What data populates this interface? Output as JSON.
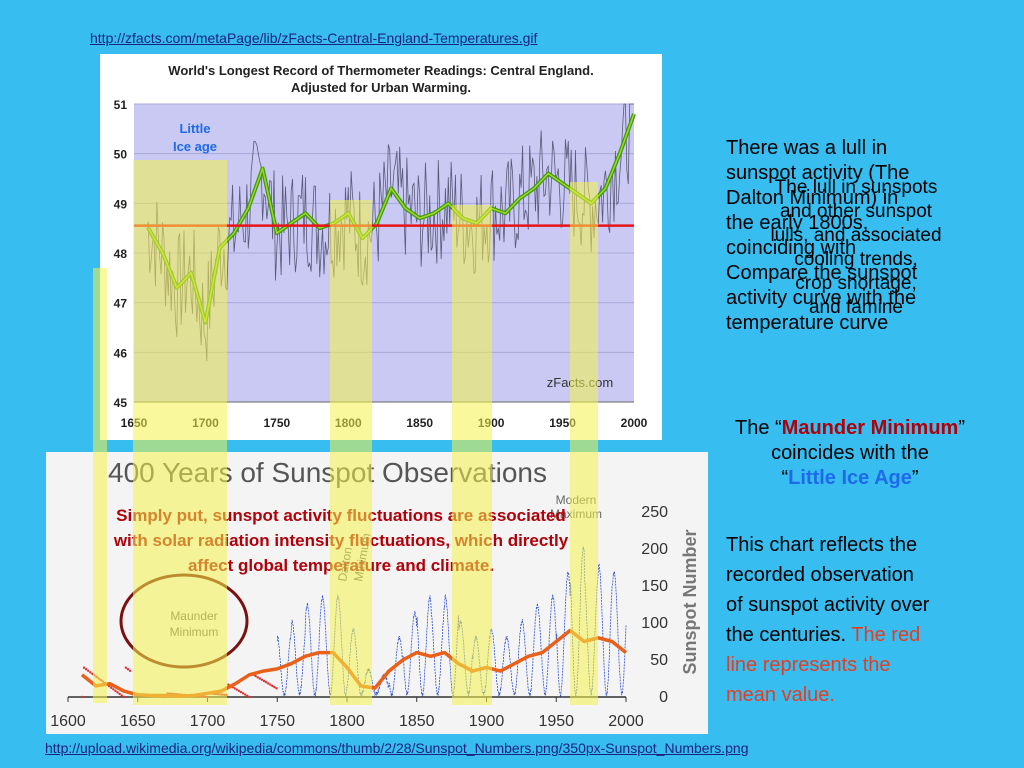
{
  "links": {
    "top": "http://zfacts.com/metaPage/lib/zFacts-Central-England-Temperatures.gif",
    "bottom": "http://upload.wikimedia.org/wikipedia/commons/thumb/2/28/Sunspot_Numbers.png/350px-Sunspot_Numbers.png"
  },
  "top_chart": {
    "title_line1": "World's Longest Record of Thermometer Readings: Central England.",
    "title_line2": "Adjusted for Urban Warming.",
    "annotation": "Little Ice age",
    "annotation_line1": "Little",
    "annotation_line2": "Ice age",
    "watermark": "zFacts.com"
  },
  "bottom_chart": {
    "title": "400 Years of Sunspot Observations",
    "ylabel": "Sunspot Number",
    "maunder_line1": "Maunder",
    "maunder_line2": "Minimum",
    "dalton_line1": "Dalton",
    "dalton_line2": "Minimum",
    "modern_line1": "Modern",
    "modern_line2": "Maximum",
    "caption_line1": "Simply put, sunspot activity fluctuations are associated",
    "caption_line2": "with solar radiation intensity fluctuations, which directly",
    "caption_line3": "affect global temperature and climate."
  },
  "right_text": {
    "p1_line1": "There was a lull in",
    "p1_line2": "sunspot activity (The",
    "p1_line3": "Dalton Minimum) in",
    "p1_line4": "the early 1800s,",
    "p1_line5": "coinciding with",
    "p1_line6": "Compare the sunspot",
    "p1_line7": "activity curve with the",
    "p1_line8": "temperature curve",
    "ghost_line1": "The lull in sunspots",
    "ghost_line2": "and other sunspot",
    "ghost_line3": "lulls, and associated",
    "ghost_line4": "cooling trends,",
    "ghost_line5": "crop shortage,",
    "ghost_line6": "and famine",
    "p2_prefix": "The “",
    "p2_highlight": "Maunder Minimum",
    "p2_suffix": "”",
    "p2_line2": "coincides with the",
    "p2_line3_prefix": "“",
    "p2_line3_highlight": "Little Ice Age",
    "p2_line3_suffix": "”",
    "p3_line1": "This chart reflects the",
    "p3_line2": "recorded observation",
    "p3_line3": "of sunspot activity over",
    "p3_line4_prefix": "the centuries.",
    "p3_line4_red": "The red",
    "p3_line5": "line represents the",
    "p3_line6": "mean value."
  },
  "chart_data": [
    {
      "type": "line",
      "title": "World's Longest Record of Thermometer Readings: Central England. Adjusted for Urban Warming.",
      "xlabel": "",
      "ylabel": "",
      "xlim": [
        1650,
        2000
      ],
      "ylim": [
        45,
        51
      ],
      "x_ticks": [
        1650,
        1700,
        1750,
        1800,
        1850,
        1900,
        1950,
        2000
      ],
      "y_ticks": [
        45,
        46,
        47,
        48,
        49,
        50,
        51
      ],
      "mean_line": 48.55,
      "series": [
        {
          "values_x": [
            1660,
            1670,
            1680,
            1690,
            1700,
            1710,
            1720,
            1730,
            1740,
            1750,
            1760,
            1770,
            1780,
            1790,
            1800,
            1810,
            1820,
            1830,
            1840,
            1850,
            1860,
            1870,
            1880,
            1890,
            1900,
            1910,
            1920,
            1930,
            1940,
            1950,
            1960,
            1970,
            1980,
            1990,
            2000
          ],
          "values_y": [
            48.5,
            48.0,
            47.3,
            47.6,
            46.6,
            48.1,
            48.4,
            48.9,
            49.7,
            48.4,
            48.6,
            48.8,
            48.5,
            48.6,
            48.8,
            48.3,
            48.6,
            49.3,
            48.9,
            48.7,
            48.8,
            49.0,
            48.7,
            48.6,
            48.9,
            48.8,
            49.1,
            49.3,
            49.6,
            49.4,
            49.2,
            49.0,
            49.3,
            50.0,
            50.8
          ]
        }
      ]
    },
    {
      "type": "line",
      "title": "400 Years of Sunspot Observations",
      "xlabel": "",
      "ylabel": "Sunspot Number",
      "xlim": [
        1600,
        2000
      ],
      "ylim": [
        0,
        250
      ],
      "x_ticks": [
        1600,
        1650,
        1700,
        1750,
        1800,
        1850,
        1900,
        1950,
        2000
      ],
      "y_ticks": [
        0,
        50,
        100,
        150,
        200,
        250
      ],
      "series": [
        {
          "values_x": [
            1610,
            1620,
            1630,
            1640,
            1650,
            1660,
            1670,
            1680,
            1690,
            1700,
            1710,
            1720,
            1730,
            1740,
            1750,
            1760,
            1770,
            1780,
            1790,
            1800,
            1810,
            1820,
            1830,
            1840,
            1850,
            1860,
            1870,
            1880,
            1890,
            1900,
            1910,
            1920,
            1930,
            1940,
            1950,
            1960,
            1970,
            1980,
            1990,
            2000
          ],
          "values_y": [
            30,
            15,
            18,
            8,
            3,
            2,
            2,
            1,
            2,
            5,
            8,
            18,
            30,
            35,
            38,
            45,
            55,
            60,
            60,
            40,
            15,
            12,
            35,
            50,
            60,
            55,
            60,
            45,
            35,
            40,
            35,
            45,
            55,
            60,
            75,
            90,
            75,
            80,
            75,
            60
          ]
        }
      ]
    }
  ]
}
